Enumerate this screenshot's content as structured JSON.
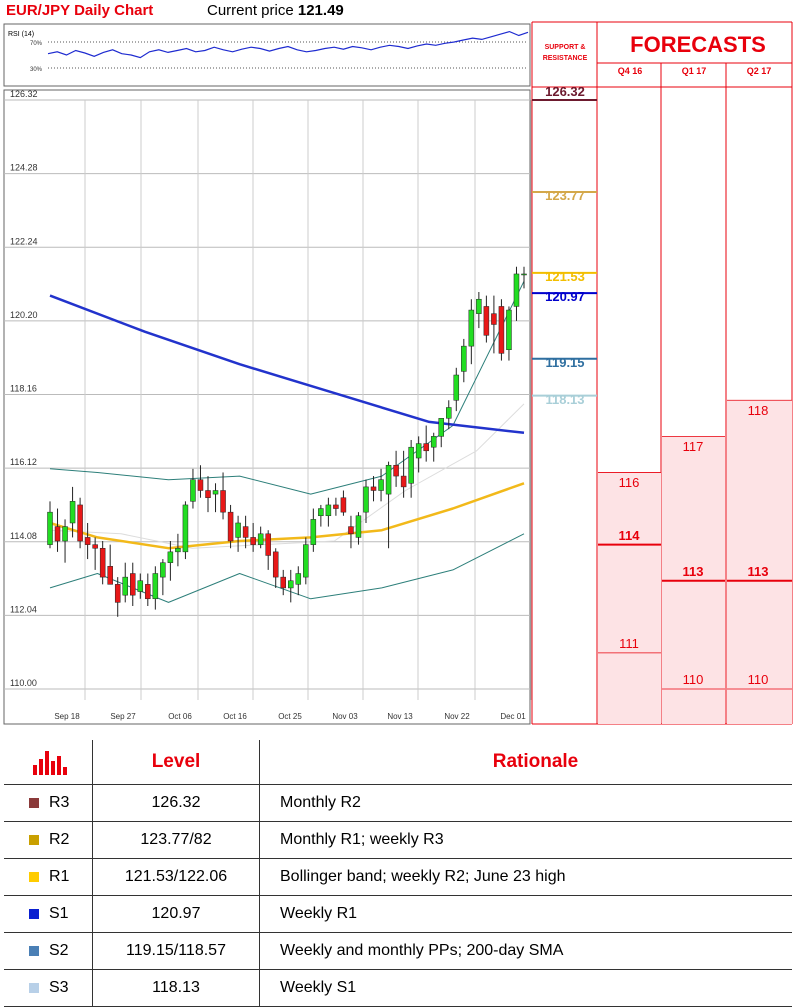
{
  "header": {
    "title": "EUR/JPY Daily Chart",
    "price_label": "Current price",
    "price_value": "121.49"
  },
  "rsi": {
    "label": "RSI (14)",
    "upper": "70%",
    "lower": "30%",
    "values": [
      52,
      55,
      50,
      57,
      53,
      48,
      54,
      58,
      52,
      50,
      46,
      55,
      58,
      54,
      57,
      60,
      55,
      57,
      62,
      58,
      55,
      59,
      62,
      60,
      56,
      60,
      63,
      58,
      55,
      57,
      60,
      62,
      59,
      63,
      61,
      58,
      62,
      65,
      63,
      60,
      64,
      67,
      65,
      68,
      70,
      73,
      76,
      74,
      78,
      82,
      86,
      80,
      85
    ]
  },
  "chart_data": {
    "type": "candlestick",
    "title": "EUR/JPY Daily Chart",
    "y_ticks": [
      "126.32",
      "124.28",
      "122.24",
      "120.20",
      "118.16",
      "116.12",
      "114.08",
      "112.04",
      "110.00"
    ],
    "ylim": [
      110.0,
      126.32
    ],
    "x_ticks": [
      "Sep 18",
      "Sep 27",
      "Oct 06",
      "Oct 16",
      "Oct 25",
      "Nov 03",
      "Nov 13",
      "Nov 22",
      "Dec 01"
    ],
    "grid": true,
    "candles": [
      {
        "o": 114.0,
        "h": 115.2,
        "l": 113.9,
        "c": 114.9
      },
      {
        "o": 114.5,
        "h": 115.0,
        "l": 113.8,
        "c": 114.1
      },
      {
        "o": 114.1,
        "h": 114.7,
        "l": 113.5,
        "c": 114.5
      },
      {
        "o": 114.6,
        "h": 115.6,
        "l": 114.2,
        "c": 115.2
      },
      {
        "o": 115.1,
        "h": 115.3,
        "l": 113.9,
        "c": 114.1
      },
      {
        "o": 114.2,
        "h": 114.6,
        "l": 113.6,
        "c": 114.0
      },
      {
        "o": 114.0,
        "h": 114.2,
        "l": 113.3,
        "c": 113.9
      },
      {
        "o": 113.9,
        "h": 114.1,
        "l": 112.9,
        "c": 113.1
      },
      {
        "o": 113.4,
        "h": 114.0,
        "l": 112.9,
        "c": 112.9
      },
      {
        "o": 112.9,
        "h": 113.1,
        "l": 112.0,
        "c": 112.4
      },
      {
        "o": 112.6,
        "h": 113.5,
        "l": 112.4,
        "c": 113.1
      },
      {
        "o": 113.2,
        "h": 113.5,
        "l": 112.3,
        "c": 112.6
      },
      {
        "o": 112.7,
        "h": 113.2,
        "l": 112.5,
        "c": 113.0
      },
      {
        "o": 112.9,
        "h": 113.2,
        "l": 112.3,
        "c": 112.5
      },
      {
        "o": 112.5,
        "h": 113.4,
        "l": 112.2,
        "c": 113.2
      },
      {
        "o": 113.1,
        "h": 113.6,
        "l": 112.6,
        "c": 113.5
      },
      {
        "o": 113.5,
        "h": 114.1,
        "l": 113.0,
        "c": 113.8
      },
      {
        "o": 113.8,
        "h": 114.3,
        "l": 113.4,
        "c": 113.9
      },
      {
        "o": 113.8,
        "h": 115.2,
        "l": 113.6,
        "c": 115.1
      },
      {
        "o": 115.2,
        "h": 116.1,
        "l": 115.0,
        "c": 115.8
      },
      {
        "o": 115.8,
        "h": 116.2,
        "l": 115.3,
        "c": 115.5
      },
      {
        "o": 115.5,
        "h": 115.9,
        "l": 114.9,
        "c": 115.3
      },
      {
        "o": 115.4,
        "h": 115.7,
        "l": 114.9,
        "c": 115.5
      },
      {
        "o": 115.5,
        "h": 116.0,
        "l": 114.7,
        "c": 114.9
      },
      {
        "o": 114.9,
        "h": 115.1,
        "l": 113.9,
        "c": 114.1
      },
      {
        "o": 114.2,
        "h": 114.8,
        "l": 113.8,
        "c": 114.6
      },
      {
        "o": 114.5,
        "h": 114.8,
        "l": 113.9,
        "c": 114.2
      },
      {
        "o": 114.2,
        "h": 114.6,
        "l": 113.8,
        "c": 114.0
      },
      {
        "o": 114.0,
        "h": 114.5,
        "l": 113.9,
        "c": 114.3
      },
      {
        "o": 114.3,
        "h": 114.4,
        "l": 113.3,
        "c": 113.7
      },
      {
        "o": 113.8,
        "h": 113.9,
        "l": 112.8,
        "c": 113.1
      },
      {
        "o": 113.1,
        "h": 113.3,
        "l": 112.6,
        "c": 112.8
      },
      {
        "o": 112.8,
        "h": 113.3,
        "l": 112.4,
        "c": 113.0
      },
      {
        "o": 112.9,
        "h": 113.4,
        "l": 112.6,
        "c": 113.2
      },
      {
        "o": 113.1,
        "h": 114.2,
        "l": 112.9,
        "c": 114.0
      },
      {
        "o": 114.0,
        "h": 115.0,
        "l": 113.8,
        "c": 114.7
      },
      {
        "o": 114.8,
        "h": 115.1,
        "l": 114.5,
        "c": 115.0
      },
      {
        "o": 114.8,
        "h": 115.3,
        "l": 114.5,
        "c": 115.1
      },
      {
        "o": 115.1,
        "h": 115.3,
        "l": 114.8,
        "c": 115.0
      },
      {
        "o": 115.3,
        "h": 115.5,
        "l": 114.8,
        "c": 114.9
      },
      {
        "o": 114.5,
        "h": 114.8,
        "l": 113.9,
        "c": 114.3
      },
      {
        "o": 114.2,
        "h": 114.9,
        "l": 114.0,
        "c": 114.8
      },
      {
        "o": 114.9,
        "h": 115.8,
        "l": 114.6,
        "c": 115.6
      },
      {
        "o": 115.6,
        "h": 115.9,
        "l": 115.2,
        "c": 115.5
      },
      {
        "o": 115.5,
        "h": 116.1,
        "l": 115.2,
        "c": 115.8
      },
      {
        "o": 115.4,
        "h": 116.3,
        "l": 113.9,
        "c": 116.2
      },
      {
        "o": 116.2,
        "h": 116.6,
        "l": 115.6,
        "c": 115.9
      },
      {
        "o": 115.9,
        "h": 116.6,
        "l": 115.3,
        "c": 115.6
      },
      {
        "o": 115.7,
        "h": 116.9,
        "l": 115.3,
        "c": 116.7
      },
      {
        "o": 116.4,
        "h": 117.0,
        "l": 116.0,
        "c": 116.8
      },
      {
        "o": 116.8,
        "h": 117.3,
        "l": 116.3,
        "c": 116.6
      },
      {
        "o": 116.7,
        "h": 117.1,
        "l": 116.3,
        "c": 117.0
      },
      {
        "o": 117.0,
        "h": 117.5,
        "l": 116.7,
        "c": 117.5
      },
      {
        "o": 117.5,
        "h": 118.0,
        "l": 117.2,
        "c": 117.8
      },
      {
        "o": 118.0,
        "h": 118.9,
        "l": 117.7,
        "c": 118.7
      },
      {
        "o": 118.8,
        "h": 119.7,
        "l": 118.5,
        "c": 119.5
      },
      {
        "o": 119.5,
        "h": 120.8,
        "l": 119.0,
        "c": 120.5
      },
      {
        "o": 120.4,
        "h": 121.0,
        "l": 120.0,
        "c": 120.8
      },
      {
        "o": 120.6,
        "h": 120.9,
        "l": 119.6,
        "c": 119.8
      },
      {
        "o": 120.4,
        "h": 120.9,
        "l": 119.3,
        "c": 120.1
      },
      {
        "o": 120.6,
        "h": 120.8,
        "l": 119.1,
        "c": 119.3
      },
      {
        "o": 119.4,
        "h": 120.6,
        "l": 119.1,
        "c": 120.5
      },
      {
        "o": 120.6,
        "h": 121.7,
        "l": 120.2,
        "c": 121.5
      },
      {
        "o": 121.5,
        "h": 121.7,
        "l": 121.1,
        "c": 121.5
      }
    ],
    "sma200": [
      [
        0,
        120.9
      ],
      [
        0.2,
        119.9
      ],
      [
        0.4,
        119.0
      ],
      [
        0.6,
        118.2
      ],
      [
        0.8,
        117.4
      ],
      [
        1,
        117.1
      ]
    ],
    "sma_short": [
      [
        0,
        114.6
      ],
      [
        0.1,
        114.2
      ],
      [
        0.25,
        113.9
      ],
      [
        0.4,
        114.1
      ],
      [
        0.55,
        114.2
      ],
      [
        0.7,
        114.4
      ],
      [
        0.85,
        115.0
      ],
      [
        1,
        115.7
      ]
    ],
    "bollinger_upper": [
      [
        0,
        116.1
      ],
      [
        0.1,
        116.0
      ],
      [
        0.25,
        115.8
      ],
      [
        0.4,
        115.9
      ],
      [
        0.55,
        115.4
      ],
      [
        0.7,
        115.9
      ],
      [
        0.85,
        117.3
      ],
      [
        1,
        121.3
      ]
    ],
    "bollinger_lower": [
      [
        0,
        112.8
      ],
      [
        0.1,
        113.2
      ],
      [
        0.25,
        112.4
      ],
      [
        0.4,
        113.2
      ],
      [
        0.55,
        112.5
      ],
      [
        0.7,
        112.8
      ],
      [
        0.85,
        113.3
      ],
      [
        1,
        114.3
      ]
    ],
    "bollinger_mid": [
      [
        0,
        114.4
      ],
      [
        0.15,
        114.3
      ],
      [
        0.3,
        113.9
      ],
      [
        0.45,
        114.0
      ],
      [
        0.6,
        114.1
      ],
      [
        0.75,
        115.5
      ],
      [
        0.9,
        116.6
      ],
      [
        1,
        117.9
      ]
    ]
  },
  "support_resistance": {
    "title_line1": "SUPPORT &",
    "title_line2": "RESISTANCE",
    "levels": [
      {
        "value": "126.32",
        "price": 126.32,
        "color": "#6d1a2e"
      },
      {
        "value": "123.77",
        "price": 123.77,
        "color": "#d4a84a"
      },
      {
        "value": "121.53",
        "price": 121.53,
        "color": "#f2be00"
      },
      {
        "value": "120.97",
        "price": 120.97,
        "color": "#0000cc"
      },
      {
        "value": "119.15",
        "price": 119.15,
        "color": "#2f6fa0"
      },
      {
        "value": "118.13",
        "price": 118.13,
        "color": "#a9cfd8"
      }
    ]
  },
  "forecasts": {
    "title": "FORECASTS",
    "columns": [
      {
        "label": "Q4 16",
        "high": "116",
        "mid": "114",
        "low": "111",
        "h": 116,
        "m": 114,
        "l": 111
      },
      {
        "label": "Q1 17",
        "high": "117",
        "mid": "113",
        "low": "110",
        "h": 117,
        "m": 113,
        "l": 110
      },
      {
        "label": "Q2 17",
        "high": "118",
        "mid": "113",
        "low": "110",
        "h": 118,
        "m": 113,
        "l": 110
      }
    ]
  },
  "table": {
    "header_level": "Level",
    "header_rationale": "Rationale",
    "rows": [
      {
        "name": "R3",
        "level": "126.32",
        "rationale": "Monthly R2",
        "color": "#8b3a3a"
      },
      {
        "name": "R2",
        "level": "123.77/82",
        "rationale": "Monthly R1; weekly R3",
        "color": "#c9a000"
      },
      {
        "name": "R1",
        "level": "121.53/122.06",
        "rationale": "Bollinger band; weekly R2; June 23 high",
        "color": "#ffcc00"
      },
      {
        "name": "S1",
        "level": "120.97",
        "rationale": "Weekly R1",
        "color": "#0a1fd0"
      },
      {
        "name": "S2",
        "level": "119.15/118.57",
        "rationale": "Weekly and monthly PPs; 200-day SMA",
        "color": "#4a7fb5"
      },
      {
        "name": "S3",
        "level": "118.13",
        "rationale": "Weekly S1",
        "color": "#b8d0e8"
      }
    ]
  }
}
